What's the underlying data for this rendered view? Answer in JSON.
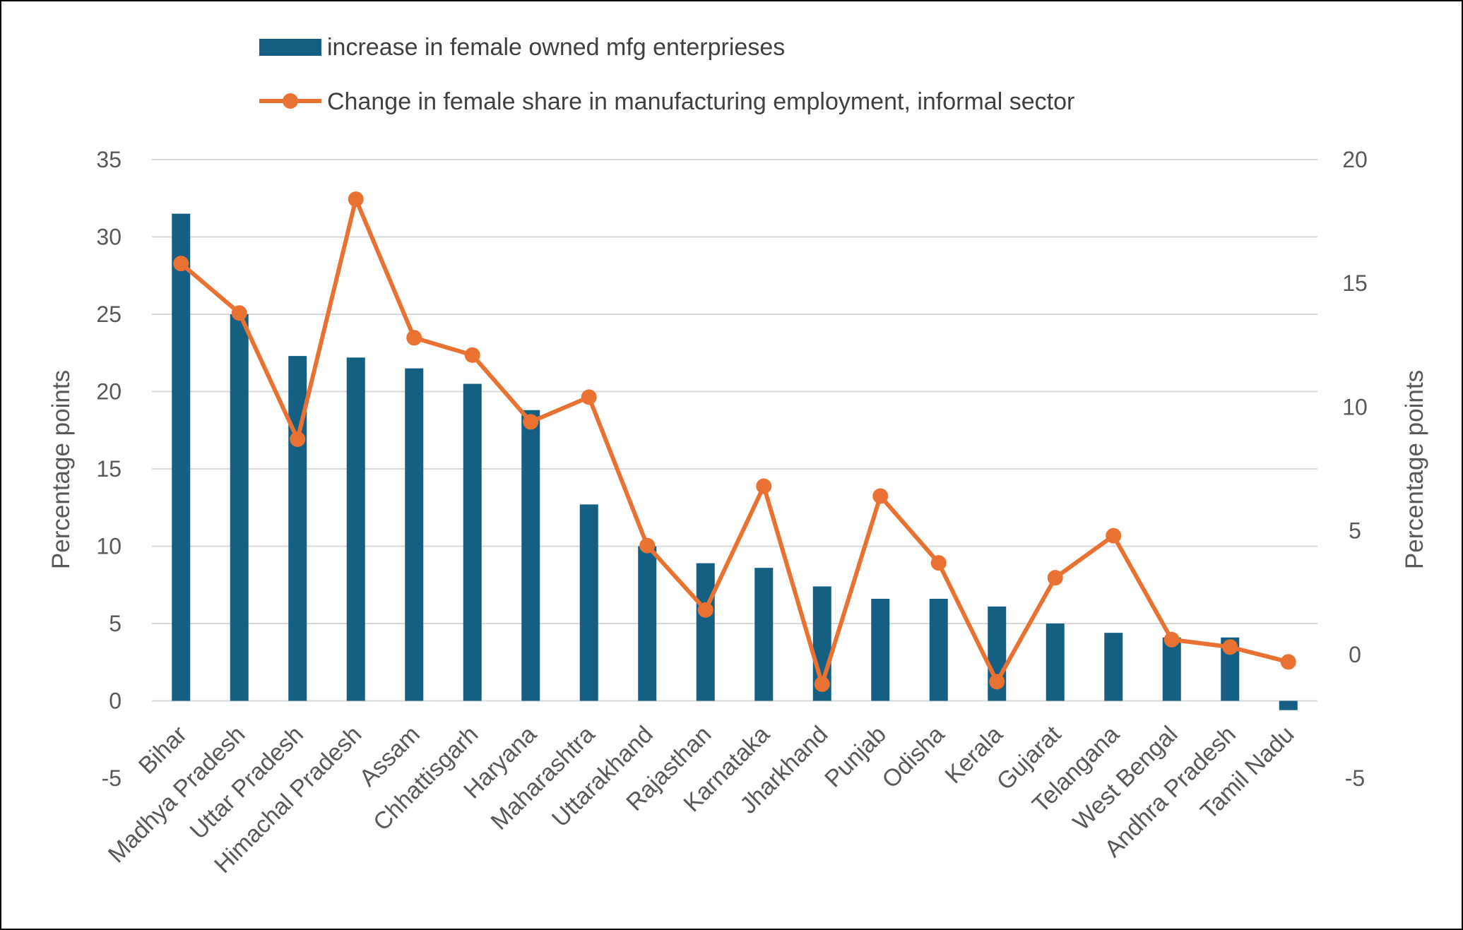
{
  "chart_data": {
    "type": "bar",
    "categories": [
      "Bihar",
      "Madhya Pradesh",
      "Uttar Pradesh",
      "Himachal Pradesh",
      "Assam",
      "Chhattisgarh",
      "Haryana",
      "Maharashtra",
      "Uttarakhand",
      "Rajasthan",
      "Karnataka",
      "Jharkhand",
      "Punjab",
      "Odisha",
      "Kerala",
      "Gujarat",
      "Telangana",
      "West Bengal",
      "Andhra Pradesh",
      "Tamil Nadu"
    ],
    "series": [
      {
        "name": "increase in female owned mfg enterprieses",
        "type": "bar",
        "axis": "left",
        "color": "#156082",
        "values": [
          31.5,
          25.0,
          22.3,
          22.2,
          21.5,
          20.5,
          18.8,
          12.7,
          10.0,
          8.9,
          8.6,
          7.4,
          6.6,
          6.6,
          6.1,
          5.0,
          4.4,
          4.1,
          4.1,
          -0.6
        ]
      },
      {
        "name": "Change in female share in manufacturing employment, informal sector",
        "type": "line",
        "axis": "right",
        "color": "#E97132",
        "values": [
          15.8,
          13.8,
          8.7,
          18.4,
          12.8,
          12.1,
          9.4,
          10.4,
          4.4,
          1.8,
          6.8,
          -1.2,
          6.4,
          3.7,
          -1.1,
          3.1,
          4.8,
          0.6,
          0.3,
          -0.3
        ]
      }
    ],
    "yleft": {
      "label": "Percentage points",
      "min": -5,
      "max": 35,
      "step": 5
    },
    "yright": {
      "label": "Percentage points",
      "min": -5,
      "max": 20,
      "step": 5
    },
    "grid": true,
    "legend": "top"
  }
}
